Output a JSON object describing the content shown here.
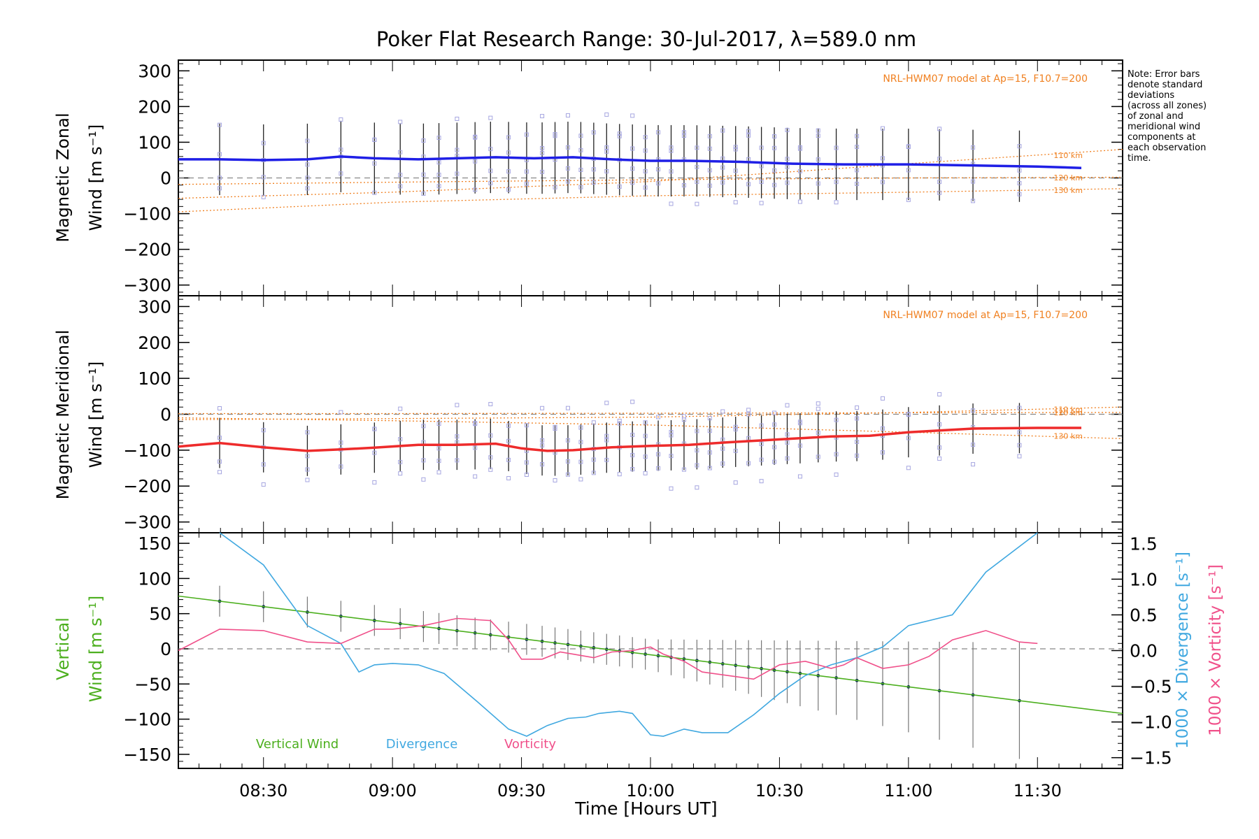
{
  "title": "Poker Flat Research Range: 30-Jul-2017, λ=589.0 nm",
  "note": [
    "Note: Error bars",
    "denote standard",
    "deviations",
    "(across all zones)",
    "of zonal and",
    "meridional wind",
    "components at",
    "each observation",
    "time."
  ],
  "x_axis_label": "Time [Hours UT]",
  "x_ticks": [
    "08:30",
    "09:00",
    "09:30",
    "10:00",
    "10:30",
    "11:00",
    "11:30"
  ],
  "colors": {
    "zonal": "#1f1fe6",
    "meridional": "#ee2b2b",
    "model": "#f08020",
    "vertical": "#4caf1e",
    "divergence": "#40a8e0",
    "vorticity": "#f0508a",
    "zone_points": "#a6a6e0",
    "grey": "#888888"
  },
  "chart_data": [
    {
      "type": "line",
      "name": "zonal",
      "ylabel_line1": "Magnetic Zonal",
      "ylabel_line2": "Wind [m s⁻¹]",
      "ylim": [
        -330,
        330
      ],
      "y_ticks": [
        300,
        200,
        100,
        0,
        -100,
        -200,
        -300
      ],
      "model_label": "NRL-HWM07 model at Ap=15, F10.7=200",
      "model_curves": [
        {
          "label": "110 km",
          "x": [
            8.17,
            9.0,
            10.0,
            11.0,
            11.83
          ],
          "y": [
            -57,
            -40,
            -10,
            40,
            80
          ]
        },
        {
          "label": "120 km",
          "x": [
            8.17,
            9.0,
            10.0,
            11.0,
            11.83
          ],
          "y": [
            -18,
            -12,
            -5,
            0,
            2
          ]
        },
        {
          "label": "130 km",
          "x": [
            8.17,
            9.0,
            10.0,
            11.0,
            11.83
          ],
          "y": [
            -95,
            -68,
            -50,
            -40,
            -30
          ]
        }
      ],
      "series": [
        {
          "name": "Zonal mean",
          "x": [
            8.17,
            8.33,
            8.5,
            8.67,
            8.8,
            8.93,
            9.1,
            9.25,
            9.4,
            9.55,
            9.7,
            9.85,
            10.0,
            10.15,
            10.35,
            10.55,
            10.75,
            11.0,
            11.25,
            11.5,
            11.67
          ],
          "y": [
            52,
            52,
            50,
            52,
            60,
            55,
            52,
            55,
            58,
            55,
            58,
            52,
            48,
            48,
            45,
            40,
            38,
            38,
            35,
            32,
            28
          ]
        }
      ],
      "obs_times": [
        8.33,
        8.5,
        8.67,
        8.8,
        8.93,
        9.03,
        9.12,
        9.18,
        9.25,
        9.32,
        9.38,
        9.45,
        9.52,
        9.58,
        9.63,
        9.68,
        9.73,
        9.78,
        9.83,
        9.88,
        9.93,
        9.98,
        10.03,
        10.08,
        10.13,
        10.18,
        10.23,
        10.28,
        10.33,
        10.38,
        10.43,
        10.48,
        10.53,
        10.58,
        10.65,
        10.72,
        10.8,
        10.9,
        11.0,
        11.12,
        11.25,
        11.43
      ],
      "error_bar": 100
    },
    {
      "type": "line",
      "name": "meridional",
      "ylabel_line1": "Magnetic Meridional",
      "ylabel_line2": "Wind [m s⁻¹]",
      "ylim": [
        -330,
        330
      ],
      "y_ticks": [
        300,
        200,
        100,
        0,
        -100,
        -200,
        -300
      ],
      "model_label": "NRL-HWM07 model at Ap=15, F10.7=200",
      "model_curves": [
        {
          "label": "110 km",
          "x": [
            8.17,
            9.0,
            10.0,
            11.0,
            11.83
          ],
          "y": [
            -15,
            -12,
            -8,
            5,
            20
          ]
        },
        {
          "label": "120 km",
          "x": [
            8.17,
            9.0,
            10.0,
            11.0,
            11.83
          ],
          "y": [
            2,
            2,
            3,
            4,
            5
          ]
        },
        {
          "label": "130 km",
          "x": [
            8.17,
            9.0,
            10.0,
            11.0,
            11.83
          ],
          "y": [
            -10,
            -18,
            -30,
            -50,
            -68
          ]
        }
      ],
      "series": [
        {
          "name": "Meridional mean",
          "x": [
            8.17,
            8.33,
            8.5,
            8.67,
            8.8,
            8.93,
            9.1,
            9.25,
            9.4,
            9.5,
            9.6,
            9.7,
            9.85,
            10.0,
            10.15,
            10.3,
            10.45,
            10.55,
            10.7,
            10.85,
            11.0,
            11.25,
            11.5,
            11.67
          ],
          "y": [
            -90,
            -80,
            -92,
            -102,
            -98,
            -93,
            -85,
            -85,
            -82,
            -95,
            -102,
            -100,
            -92,
            -88,
            -85,
            -78,
            -72,
            -68,
            -62,
            -60,
            -50,
            -40,
            -38,
            -38
          ]
        }
      ],
      "obs_times": [
        8.33,
        8.5,
        8.67,
        8.8,
        8.93,
        9.03,
        9.12,
        9.18,
        9.25,
        9.32,
        9.38,
        9.45,
        9.52,
        9.58,
        9.63,
        9.68,
        9.73,
        9.78,
        9.83,
        9.88,
        9.93,
        9.98,
        10.03,
        10.08,
        10.13,
        10.18,
        10.23,
        10.28,
        10.33,
        10.38,
        10.43,
        10.48,
        10.53,
        10.58,
        10.65,
        10.72,
        10.8,
        10.9,
        11.0,
        11.12,
        11.25,
        11.43
      ],
      "error_bar": 70
    },
    {
      "type": "line",
      "name": "vertical",
      "ylabel_left_line1": "Vertical",
      "ylabel_left_line2": "Wind [m s⁻¹]",
      "ylabel_right_1": "1000 × Divergence [s⁻¹]",
      "ylabel_right_2": "1000 × Vorticity [s⁻¹]",
      "ylim": [
        -170,
        165
      ],
      "y_ticks": [
        150,
        100,
        50,
        0,
        -50,
        -100,
        -150
      ],
      "y2lim": [
        -1.65,
        1.65
      ],
      "y2_ticks": [
        1.5,
        1.0,
        0.5,
        0.0,
        -0.5,
        -1.0,
        -1.5
      ],
      "y2_tick_labels": [
        "1.5",
        "1.0",
        "0.5",
        "0.0",
        "−0.5",
        "−1.0",
        "−1.5"
      ],
      "legend": [
        "Vertical Wind",
        "Divergence",
        "Vorticity"
      ],
      "vertical_wind": {
        "x": [
          8.17,
          11.83
        ],
        "y": [
          75,
          -92
        ],
        "obs_times": [
          8.33,
          8.5,
          8.67,
          8.8,
          8.93,
          9.03,
          9.12,
          9.18,
          9.25,
          9.32,
          9.38,
          9.45,
          9.52,
          9.58,
          9.63,
          9.68,
          9.73,
          9.78,
          9.83,
          9.88,
          9.93,
          9.98,
          10.03,
          10.08,
          10.13,
          10.18,
          10.23,
          10.28,
          10.33,
          10.38,
          10.43,
          10.48,
          10.53,
          10.58,
          10.65,
          10.72,
          10.8,
          10.9,
          11.0,
          11.12,
          11.25,
          11.43
        ],
        "error_bar": 22,
        "error_bar_late": 60
      },
      "divergence": {
        "x": [
          8.33,
          8.5,
          8.67,
          8.8,
          8.87,
          8.93,
          9.0,
          9.1,
          9.2,
          9.33,
          9.45,
          9.52,
          9.6,
          9.68,
          9.75,
          9.8,
          9.88,
          9.93,
          10.0,
          10.05,
          10.13,
          10.2,
          10.3,
          10.4,
          10.5,
          10.6,
          10.7,
          10.8,
          10.9,
          11.0,
          11.08,
          11.17,
          11.3,
          11.5
        ],
        "y": [
          1.65,
          1.2,
          0.35,
          0.1,
          -0.3,
          -0.2,
          -0.18,
          -0.2,
          -0.32,
          -0.72,
          -1.1,
          -1.2,
          -1.05,
          -0.95,
          -0.93,
          -0.88,
          -0.85,
          -0.88,
          -1.18,
          -1.2,
          -1.1,
          -1.15,
          -1.15,
          -0.9,
          -0.6,
          -0.35,
          -0.2,
          -0.1,
          0.05,
          0.35,
          0.42,
          0.5,
          1.1,
          1.65
        ]
      },
      "vorticity": {
        "x": [
          8.17,
          8.33,
          8.5,
          8.67,
          8.8,
          8.93,
          9.0,
          9.12,
          9.25,
          9.38,
          9.45,
          9.5,
          9.58,
          9.65,
          9.7,
          9.78,
          9.85,
          9.93,
          10.0,
          10.05,
          10.13,
          10.2,
          10.3,
          10.4,
          10.5,
          10.6,
          10.7,
          10.75,
          10.8,
          10.9,
          11.0,
          11.08,
          11.17,
          11.3,
          11.43,
          11.5
        ],
        "y": [
          0.0,
          0.3,
          0.28,
          0.12,
          0.1,
          0.3,
          0.3,
          0.35,
          0.45,
          0.42,
          0.15,
          -0.12,
          -0.12,
          -0.02,
          -0.05,
          -0.1,
          -0.02,
          0.0,
          0.05,
          -0.05,
          -0.15,
          -0.3,
          -0.35,
          -0.4,
          -0.2,
          -0.15,
          -0.25,
          -0.2,
          -0.1,
          -0.25,
          -0.2,
          -0.08,
          0.15,
          0.28,
          0.12,
          0.1
        ]
      }
    }
  ]
}
